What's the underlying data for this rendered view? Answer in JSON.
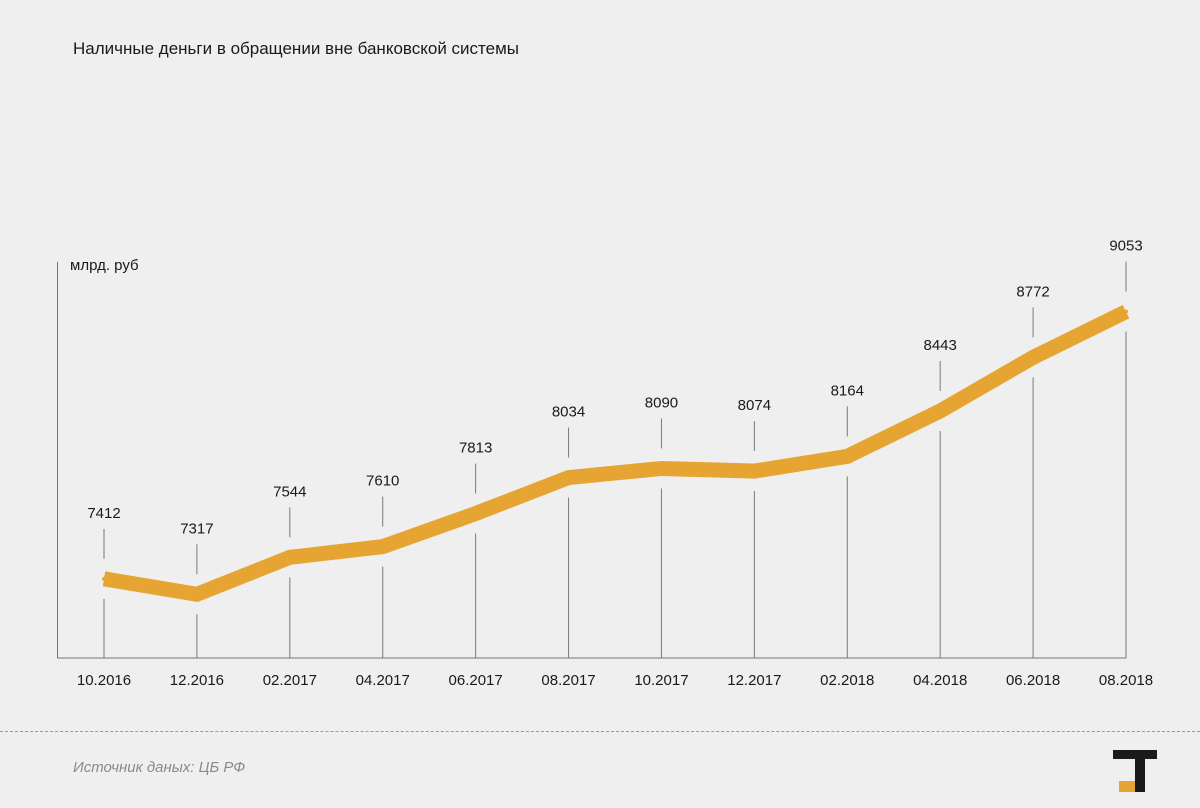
{
  "title": "Наличные деньги в обращении вне банковской системы",
  "unit_label": "млрд. руб",
  "source": "Источник даных: ЦБ РФ",
  "colors": {
    "line": "#e6a532",
    "background": "#efefef",
    "guide": "#7a7a7a",
    "text": "#1a1a1a",
    "logo_dark": "#1a1a1a",
    "logo_accent": "#e6a532"
  },
  "icons": {
    "logo": "publisher-logo-icon"
  },
  "chart_data": {
    "type": "line",
    "title": "Наличные деньги в обращении вне банковской системы",
    "xlabel": "",
    "ylabel": "млрд. руб",
    "categories": [
      "10.2016",
      "12.2016",
      "02.2017",
      "04.2017",
      "06.2017",
      "08.2017",
      "10.2017",
      "12.2017",
      "02.2018",
      "04.2018",
      "06.2018",
      "08.2018"
    ],
    "series": [
      {
        "name": "Наличные деньги в обращении вне банковской системы",
        "values": [
          7412,
          7317,
          7544,
          7610,
          7813,
          8034,
          8090,
          8074,
          8164,
          8443,
          8772,
          9053
        ]
      }
    ],
    "value_labels": [
      "7412",
      "7317",
      "7544",
      "7610",
      "7813",
      "8034",
      "8090",
      "8074",
      "8164",
      "8443",
      "8772",
      "9053"
    ],
    "grid": false,
    "legend": "none"
  }
}
